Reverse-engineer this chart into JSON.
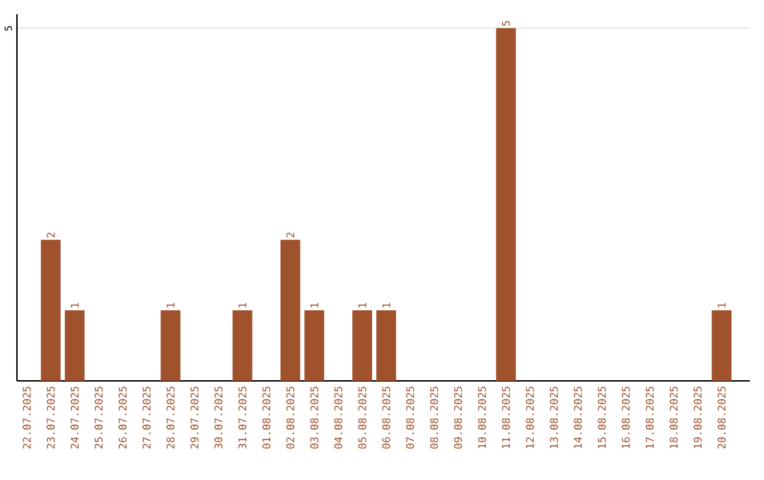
{
  "chart_data": {
    "type": "bar",
    "categories": [
      "22.07.2025",
      "23.07.2025",
      "24.07.2025",
      "25.07.2025",
      "26.07.2025",
      "27.07.2025",
      "28.07.2025",
      "29.07.2025",
      "30.07.2025",
      "31.07.2025",
      "01.08.2025",
      "02.08.2025",
      "03.08.2025",
      "04.08.2025",
      "05.08.2025",
      "06.08.2025",
      "07.08.2025",
      "08.08.2025",
      "09.08.2025",
      "10.08.2025",
      "11.08.2025",
      "12.08.2025",
      "13.08.2025",
      "14.08.2025",
      "15.08.2025",
      "16.08.2025",
      "17.08.2025",
      "18.08.2025",
      "19.08.2025",
      "20.08.2025"
    ],
    "values": [
      0,
      2,
      1,
      0,
      0,
      0,
      1,
      0,
      0,
      1,
      0,
      2,
      1,
      0,
      1,
      1,
      0,
      0,
      0,
      0,
      5,
      0,
      0,
      0,
      0,
      0,
      0,
      0,
      0,
      1
    ],
    "value_labels": [
      null,
      "2",
      "1",
      null,
      null,
      null,
      "1",
      null,
      null,
      "1",
      null,
      "2",
      "1",
      null,
      "1",
      "1",
      null,
      null,
      null,
      null,
      "5",
      null,
      null,
      null,
      null,
      null,
      null,
      null,
      null,
      "1"
    ],
    "color": "#a0522d",
    "ylim": [
      0,
      5.2
    ],
    "yticks": [
      5
    ],
    "grid": "y"
  }
}
